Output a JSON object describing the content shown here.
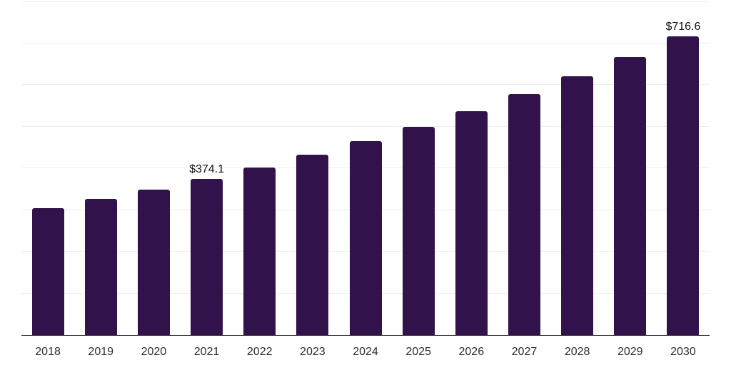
{
  "chart_data": {
    "type": "bar",
    "title": "",
    "xlabel": "",
    "ylabel": "",
    "categories": [
      "2018",
      "2019",
      "2020",
      "2021",
      "2022",
      "2023",
      "2024",
      "2025",
      "2026",
      "2027",
      "2028",
      "2029",
      "2030"
    ],
    "values": [
      303.0,
      325.4,
      347.8,
      374.1,
      402.1,
      432.3,
      464.7,
      499.5,
      537.0,
      577.2,
      620.4,
      666.9,
      716.6
    ],
    "data_labels": {
      "2021": "$374.1",
      "2030": "$716.6"
    },
    "ylim": [
      0,
      800
    ],
    "gridline_step": 100,
    "grid": true,
    "legend_position": "none",
    "y_axis_labels_visible": false,
    "colors": {
      "bar": "#31124a",
      "axis_line": "#2b2b2b",
      "gridline": "#ededed",
      "data_label": "#111111",
      "tick_label": "#2e2e2e",
      "background": "#ffffff"
    }
  }
}
